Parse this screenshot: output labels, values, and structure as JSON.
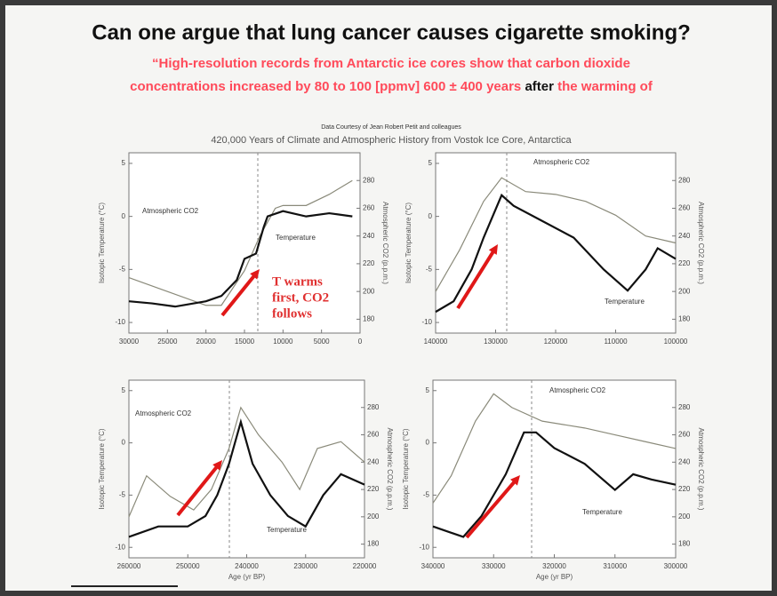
{
  "header": {
    "title": "Can one argue that lung cancer causes cigarette smoking?",
    "quote_line1": "“High-resolution records from Antarctic ice cores show that carbon dioxide",
    "quote_line2_a": "concentrations increased by 80 to 100 [ppmv] 600 ± 400 years",
    "quote_line2_b": "after",
    "quote_line2_c": "the warming of"
  },
  "figure": {
    "credit": "Data Courtesy of Jean Robert Petit and colleagues",
    "title": "420,000 Years of Climate and Atmospheric History from Vostok Ice Core, Antarctica",
    "annotation": [
      "T warms",
      "first, CO2",
      "follows"
    ],
    "panels": [
      {
        "ylabel": "Isotopic Temperature (°C)",
        "y2label": "Atmospheric CO2 (p.p.m.)",
        "co2_label": "Atmospheric CO2",
        "temp_label": "Temperature",
        "xlim": [
          30000,
          0
        ],
        "xticks": [
          30000,
          25000,
          20000,
          15000,
          10000,
          5000,
          0
        ],
        "ylim": [
          -11,
          6
        ],
        "yticks": [
          -10,
          -5,
          0,
          5
        ],
        "y2lim": [
          170,
          300
        ],
        "y2ticks": [
          180,
          200,
          220,
          240,
          260,
          280
        ],
        "temperature": {
          "color": "#111111",
          "x": [
            30000,
            27000,
            24000,
            20000,
            18000,
            16000,
            15000,
            13500,
            12500,
            12000,
            10000,
            7000,
            4000,
            1000
          ],
          "values": [
            -8,
            -8.2,
            -8.5,
            -8,
            -7.5,
            -6,
            -4,
            -3.5,
            -1,
            0,
            0.5,
            0,
            0.3,
            0
          ]
        },
        "co2": {
          "color": "#8a8a7a",
          "x": [
            30000,
            25000,
            20000,
            18000,
            15000,
            13000,
            11000,
            10000,
            7000,
            4000,
            1000
          ],
          "values": [
            210,
            200,
            190,
            190,
            215,
            240,
            260,
            262,
            262,
            270,
            280
          ]
        }
      },
      {
        "ylabel": "Isotopic Temperature (°C)",
        "y2label": "Atmospheric CO2 (p.p.m.)",
        "co2_label": "Atmospheric CO2",
        "temp_label": "Temperature",
        "xlim": [
          140000,
          100000
        ],
        "xticks": [
          140000,
          130000,
          120000,
          110000,
          100000
        ],
        "ylim": [
          -11,
          6
        ],
        "yticks": [
          -10,
          -5,
          0,
          5
        ],
        "y2lim": [
          170,
          300
        ],
        "y2ticks": [
          180,
          200,
          220,
          240,
          260,
          280
        ],
        "temperature": {
          "color": "#111111",
          "x": [
            140000,
            137000,
            134000,
            132000,
            129000,
            127000,
            122000,
            117000,
            112000,
            108000,
            105000,
            103000,
            100000
          ],
          "values": [
            -9,
            -8,
            -5,
            -2,
            2,
            1,
            -0.5,
            -2,
            -5,
            -7,
            -5,
            -3,
            -4
          ]
        },
        "co2": {
          "color": "#8a8a7a",
          "x": [
            140000,
            136000,
            132000,
            129000,
            125000,
            120000,
            115000,
            110000,
            105000,
            100000
          ],
          "values": [
            200,
            230,
            265,
            282,
            272,
            270,
            265,
            255,
            240,
            235
          ]
        }
      },
      {
        "ylabel": "Isotopic Temperature (°C)",
        "y2label": "Atmospheric CO2 (p.p.m.)",
        "co2_label": "Atmospheric CO2",
        "temp_label": "Temperature",
        "xlabel": "Age (yr BP)",
        "xlim": [
          260000,
          220000
        ],
        "xticks": [
          260000,
          250000,
          240000,
          230000,
          220000
        ],
        "ylim": [
          -11,
          6
        ],
        "yticks": [
          -10,
          -5,
          0,
          5
        ],
        "y2lim": [
          170,
          300
        ],
        "y2ticks": [
          180,
          200,
          220,
          240,
          260,
          280
        ],
        "temperature": {
          "color": "#111111",
          "x": [
            260000,
            255000,
            250000,
            247000,
            245000,
            243000,
            241000,
            239000,
            236000,
            233000,
            230000,
            227000,
            224000,
            220000
          ],
          "values": [
            -9,
            -8,
            -8,
            -7,
            -5,
            -2,
            2,
            -2,
            -5,
            -7,
            -8,
            -5,
            -3,
            -4
          ]
        },
        "co2": {
          "color": "#8a8a7a",
          "x": [
            260000,
            257000,
            253000,
            249000,
            246000,
            243000,
            241000,
            238000,
            234000,
            231000,
            228000,
            224000,
            220000
          ],
          "values": [
            200,
            230,
            215,
            205,
            220,
            250,
            280,
            260,
            240,
            220,
            250,
            255,
            240
          ]
        }
      },
      {
        "ylabel": "Isotopic Temperature (°C)",
        "y2label": "Atmospheric CO2 (p.p.m.)",
        "co2_label": "Atmospheric CO2",
        "temp_label": "Temperature",
        "xlabel": "Age (yr BP)",
        "xlim": [
          340000,
          300000
        ],
        "xticks": [
          340000,
          330000,
          320000,
          310000,
          300000
        ],
        "ylim": [
          -11,
          6
        ],
        "yticks": [
          -10,
          -5,
          0,
          5
        ],
        "y2lim": [
          170,
          300
        ],
        "y2ticks": [
          180,
          200,
          220,
          240,
          260,
          280
        ],
        "temperature": {
          "color": "#111111",
          "x": [
            340000,
            335000,
            332000,
            328000,
            325000,
            323000,
            320000,
            315000,
            310000,
            307000,
            304000,
            300000
          ],
          "values": [
            -8,
            -9,
            -7,
            -3,
            1,
            1,
            -0.5,
            -2,
            -4.5,
            -3,
            -3.5,
            -4
          ]
        },
        "co2": {
          "color": "#8a8a7a",
          "x": [
            340000,
            337000,
            333000,
            330000,
            327000,
            322000,
            315000,
            310000,
            305000,
            300000
          ],
          "values": [
            210,
            230,
            270,
            290,
            280,
            270,
            265,
            260,
            255,
            250
          ]
        }
      }
    ]
  }
}
